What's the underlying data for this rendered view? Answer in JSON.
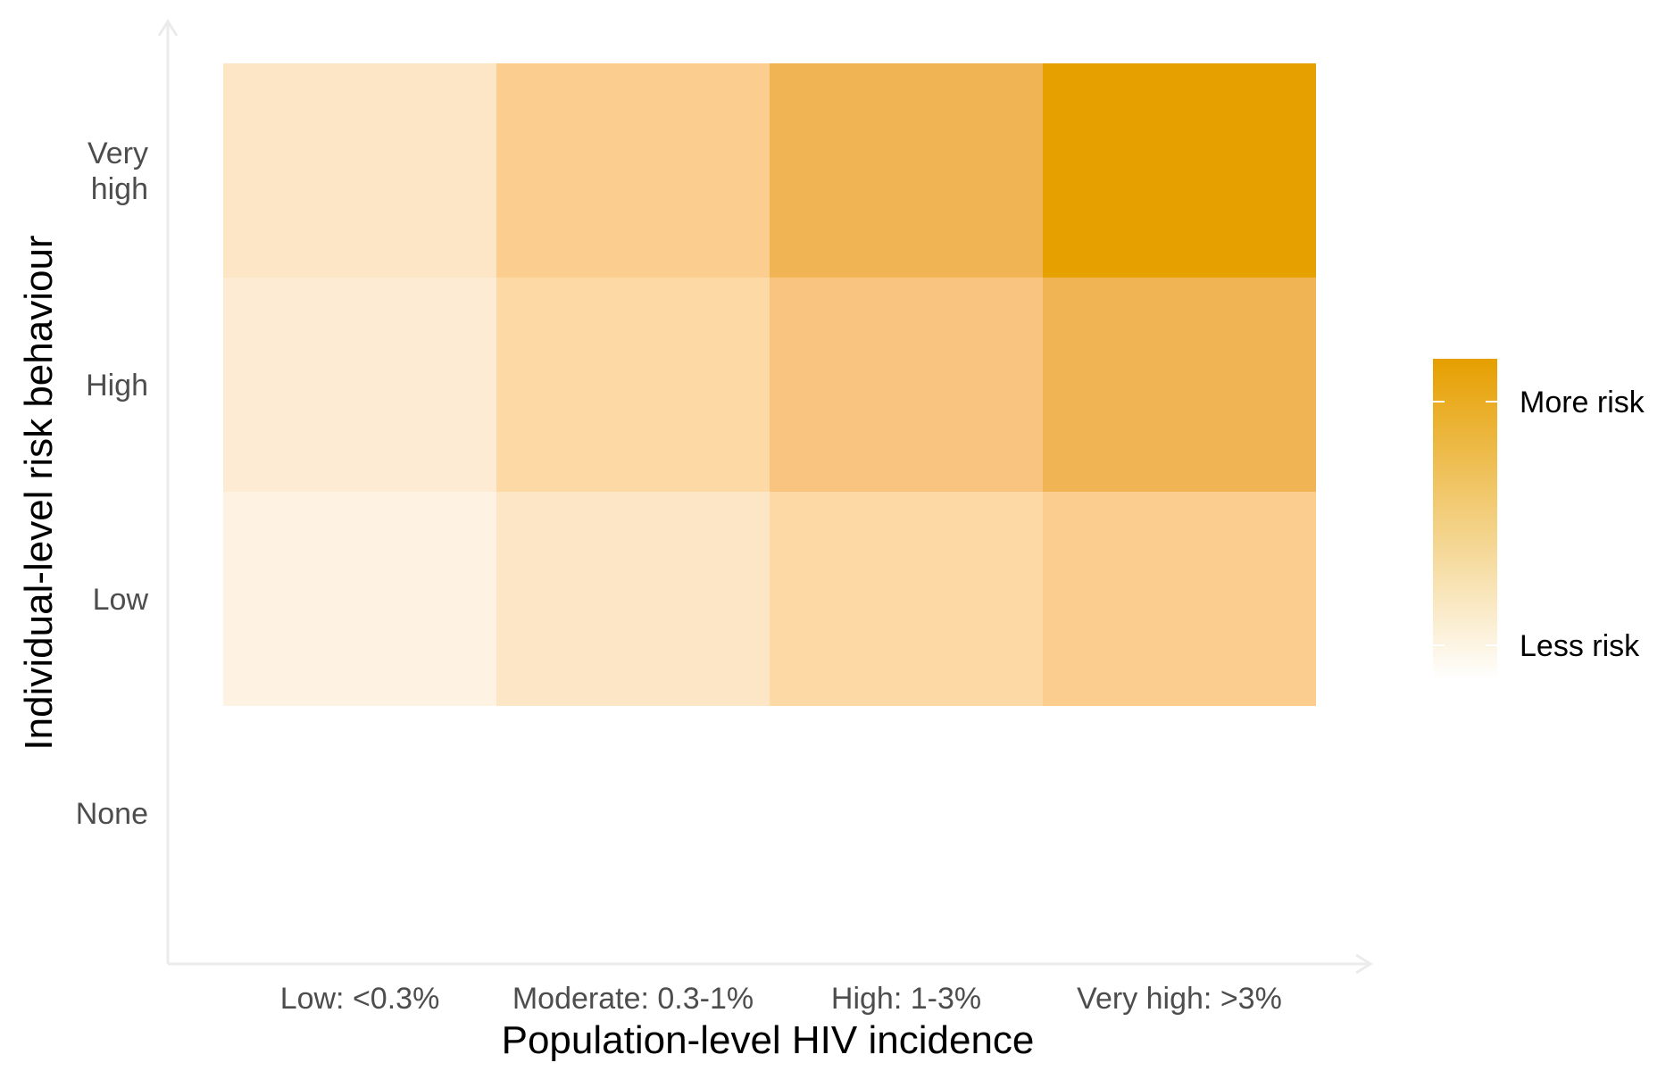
{
  "chart_data": {
    "type": "heatmap",
    "xlabel": "Population-level HIV incidence",
    "ylabel": "Individual-level risk behaviour",
    "x_categories": [
      "Low: <0.3%",
      "Moderate: 0.3-1%",
      "High: 1-3%",
      "Very high: >3%"
    ],
    "y_categories": [
      "None",
      "Low",
      "High",
      "Very high"
    ],
    "y_category_lines": [
      [
        "None"
      ],
      [
        "Low"
      ],
      [
        "High"
      ],
      [
        "Very",
        "high"
      ]
    ],
    "risk_level_scale": [
      0,
      6
    ],
    "cells": [
      {
        "x": "Low: <0.3%",
        "y": "Low",
        "value": 1
      },
      {
        "x": "Moderate: 0.3-1%",
        "y": "Low",
        "value": 2
      },
      {
        "x": "High: 1-3%",
        "y": "Low",
        "value": 3
      },
      {
        "x": "Very high: >3%",
        "y": "Low",
        "value": 4
      },
      {
        "x": "Low: <0.3%",
        "y": "High",
        "value": 1.5
      },
      {
        "x": "Moderate: 0.3-1%",
        "y": "High",
        "value": 3
      },
      {
        "x": "High: 1-3%",
        "y": "High",
        "value": 4.2
      },
      {
        "x": "Very high: >3%",
        "y": "High",
        "value": 5
      },
      {
        "x": "Low: <0.3%",
        "y": "Very high",
        "value": 2
      },
      {
        "x": "Moderate: 0.3-1%",
        "y": "Very high",
        "value": 4
      },
      {
        "x": "High: 1-3%",
        "y": "Very high",
        "value": 5
      },
      {
        "x": "Very high: >3%",
        "y": "Very high",
        "value": 6
      }
    ],
    "legend": {
      "placement": "right",
      "labels": [
        "More risk",
        "Less risk"
      ],
      "color_high": "#E69F00",
      "color_low": "#FFFFFF"
    },
    "cell_colors": {
      "1": "#FEF2E2",
      "1.5": "#FEEBD3",
      "2": "#FDE6C6",
      "3": "#FCD9A5",
      "4": "#FBCD8E",
      "4.2": "#F9C47F",
      "5": "#F0B454",
      "6": "#E6A000"
    },
    "grid": false
  }
}
